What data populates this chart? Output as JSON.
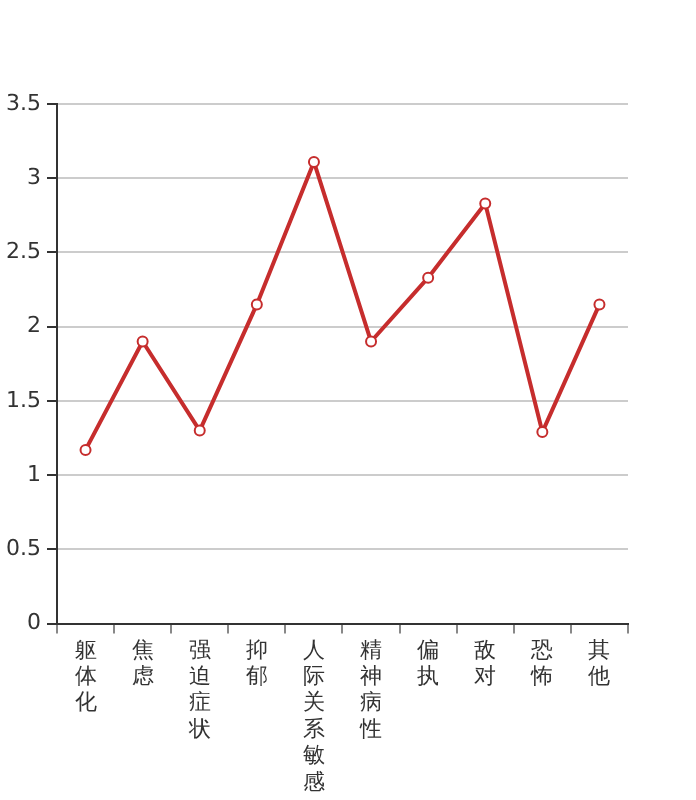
{
  "chart_data": {
    "type": "line",
    "categories": [
      "躯体化",
      "焦虑",
      "强迫症状",
      "抑郁",
      "人际关系敏感",
      "精神病性",
      "偏执",
      "敌对",
      "恐怖",
      "其他"
    ],
    "series": [
      {
        "color": "#c62d2d",
        "values": [
          1.17,
          1.9,
          1.3,
          2.15,
          3.11,
          1.9,
          2.33,
          2.83,
          1.29,
          2.15
        ]
      }
    ],
    "ylim": [
      0,
      3.5
    ],
    "yticks": [
      0,
      0.5,
      1,
      1.5,
      2,
      2.5,
      3,
      3.5
    ],
    "grid": "y",
    "legend": false,
    "marker": "circle",
    "line_style": "solid"
  }
}
